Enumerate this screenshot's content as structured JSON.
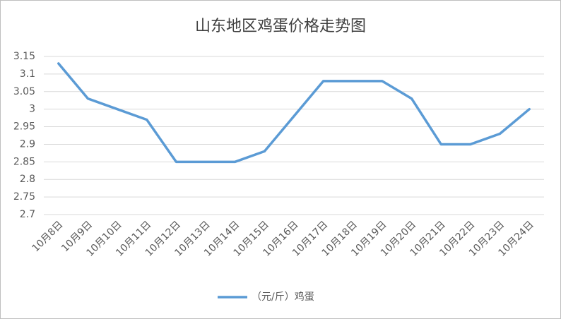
{
  "chart_data": {
    "type": "line",
    "title": "山东地区鸡蛋价格走势图",
    "categories": [
      "10月8日",
      "10月9日",
      "10月10日",
      "10月11日",
      "10月12日",
      "10月13日",
      "10月14日",
      "10月15日",
      "10月16日",
      "10月17日",
      "10月18日",
      "10月19日",
      "10月20日",
      "10月21日",
      "10月22日",
      "10月23日",
      "10月24日"
    ],
    "series": [
      {
        "name": "（元/斤）鸡蛋",
        "color": "#5b9bd5",
        "values": [
          3.13,
          3.03,
          3.0,
          2.97,
          2.85,
          2.85,
          2.85,
          2.88,
          2.98,
          3.08,
          3.08,
          3.08,
          3.03,
          2.9,
          2.9,
          2.93,
          3.0
        ]
      }
    ],
    "ylim": [
      2.7,
      3.15
    ],
    "yticks": [
      2.7,
      2.75,
      2.8,
      2.85,
      2.9,
      2.95,
      3,
      3.05,
      3.1,
      3.15
    ],
    "grid": true,
    "legend": "bottom"
  }
}
